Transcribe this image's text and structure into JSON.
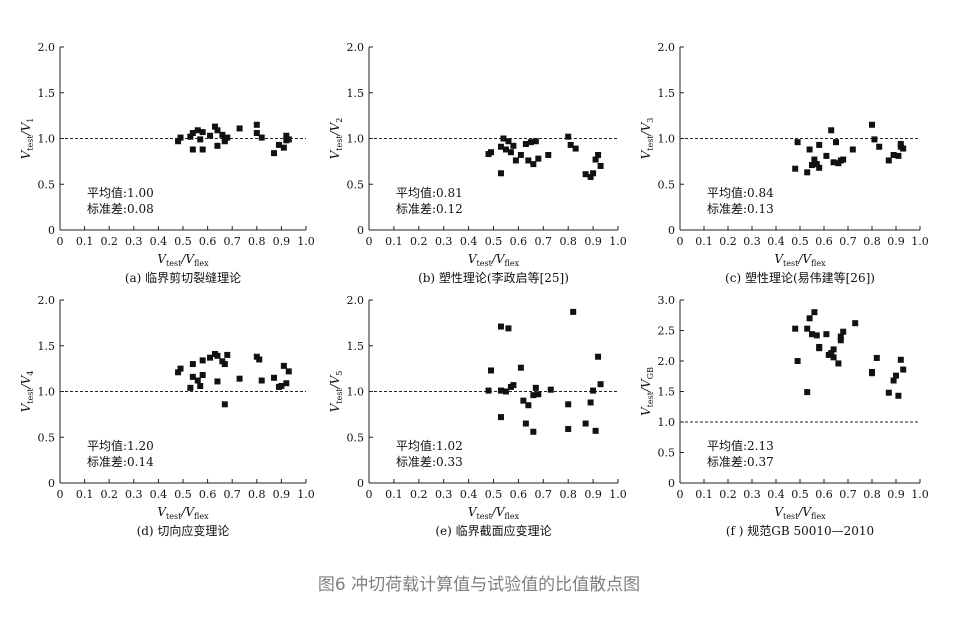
{
  "figure_caption": "图6 冲切荷载计算值与试验值的比值散点图",
  "chart_data": [
    {
      "type": "scatter",
      "caption": "(a) 临界剪切裂缝理论",
      "xlabel": {
        "main": "V",
        "sub": "test",
        "mid": "/V",
        "sub2": "flex"
      },
      "ylabel": {
        "main": "V",
        "sub": "test",
        "mid": "/V",
        "sub2": "1"
      },
      "xlim": [
        0,
        1.0
      ],
      "ylim": [
        0,
        2.0
      ],
      "xticks": [
        "0",
        "0.1",
        "0.2",
        "0.3",
        "0.4",
        "0.5",
        "0.6",
        "0.7",
        "0.8",
        "0.9",
        "1.0"
      ],
      "yticks": [
        "0",
        "0.5",
        "1.0",
        "1.5",
        "2.0"
      ],
      "ref_line": 1.0,
      "ref_style": "dashed",
      "stats": [
        "平均值:1.00",
        "标准差:0.08"
      ],
      "points": [
        [
          0.48,
          0.97
        ],
        [
          0.49,
          1.01
        ],
        [
          0.53,
          1.02
        ],
        [
          0.54,
          1.06
        ],
        [
          0.54,
          0.88
        ],
        [
          0.56,
          1.09
        ],
        [
          0.57,
          0.99
        ],
        [
          0.58,
          1.07
        ],
        [
          0.58,
          0.88
        ],
        [
          0.61,
          1.03
        ],
        [
          0.63,
          1.13
        ],
        [
          0.64,
          0.92
        ],
        [
          0.64,
          1.09
        ],
        [
          0.66,
          1.04
        ],
        [
          0.67,
          0.98
        ],
        [
          0.67,
          0.97
        ],
        [
          0.68,
          1.01
        ],
        [
          0.73,
          1.11
        ],
        [
          0.8,
          1.15
        ],
        [
          0.8,
          1.06
        ],
        [
          0.82,
          1.01
        ],
        [
          0.87,
          0.84
        ],
        [
          0.89,
          0.93
        ],
        [
          0.91,
          0.9
        ],
        [
          0.92,
          0.98
        ],
        [
          0.92,
          1.03
        ],
        [
          0.93,
          0.99
        ]
      ]
    },
    {
      "type": "scatter",
      "caption": "(b) 塑性理论(李政启等[25])",
      "xlabel": {
        "main": "V",
        "sub": "test",
        "mid": "/V",
        "sub2": "flex"
      },
      "ylabel": {
        "main": "V",
        "sub": "test",
        "mid": "/V",
        "sub2": "2"
      },
      "xlim": [
        0,
        1.0
      ],
      "ylim": [
        0,
        2.0
      ],
      "xticks": [
        "0",
        "0.1",
        "0.2",
        "0.3",
        "0.4",
        "0.5",
        "0.6",
        "0.7",
        "0.8",
        "0.9",
        "1.0"
      ],
      "yticks": [
        "0",
        "0.5",
        "1.0",
        "1.5",
        "2.0"
      ],
      "ref_line": 1.0,
      "ref_style": "dashed",
      "stats": [
        "平均值:0.81",
        "标准差:0.12"
      ],
      "points": [
        [
          0.48,
          0.83
        ],
        [
          0.49,
          0.85
        ],
        [
          0.53,
          0.62
        ],
        [
          0.53,
          0.91
        ],
        [
          0.54,
          1.0
        ],
        [
          0.55,
          0.88
        ],
        [
          0.56,
          0.97
        ],
        [
          0.57,
          0.85
        ],
        [
          0.58,
          0.92
        ],
        [
          0.59,
          0.76
        ],
        [
          0.61,
          0.82
        ],
        [
          0.63,
          0.94
        ],
        [
          0.64,
          0.76
        ],
        [
          0.65,
          0.96
        ],
        [
          0.66,
          0.72
        ],
        [
          0.67,
          0.97
        ],
        [
          0.68,
          0.78
        ],
        [
          0.72,
          0.82
        ],
        [
          0.8,
          1.02
        ],
        [
          0.81,
          0.93
        ],
        [
          0.83,
          0.89
        ],
        [
          0.87,
          0.61
        ],
        [
          0.89,
          0.58
        ],
        [
          0.9,
          0.62
        ],
        [
          0.91,
          0.77
        ],
        [
          0.92,
          0.82
        ],
        [
          0.93,
          0.7
        ]
      ]
    },
    {
      "type": "scatter",
      "caption": "(c) 塑性理论(易伟建等[26])",
      "xlabel": {
        "main": "V",
        "sub": "test",
        "mid": "/V",
        "sub2": "flex"
      },
      "ylabel": {
        "main": "V",
        "sub": "test",
        "mid": "/V",
        "sub2": "3"
      },
      "xlim": [
        0,
        1.0
      ],
      "ylim": [
        0,
        2.0
      ],
      "xticks": [
        "0",
        "0.1",
        "0.2",
        "0.3",
        "0.4",
        "0.5",
        "0.6",
        "0.7",
        "0.8",
        "0.9",
        "1.0"
      ],
      "yticks": [
        "0",
        "0.5",
        "1.0",
        "1.5",
        "2.0"
      ],
      "ref_line": 1.0,
      "ref_style": "dashed",
      "stats": [
        "平均值:0.84",
        "标准差:0.13"
      ],
      "points": [
        [
          0.48,
          0.67
        ],
        [
          0.49,
          0.96
        ],
        [
          0.53,
          0.63
        ],
        [
          0.54,
          0.88
        ],
        [
          0.55,
          0.71
        ],
        [
          0.56,
          0.77
        ],
        [
          0.57,
          0.72
        ],
        [
          0.58,
          0.93
        ],
        [
          0.58,
          0.68
        ],
        [
          0.61,
          0.81
        ],
        [
          0.63,
          1.09
        ],
        [
          0.64,
          0.74
        ],
        [
          0.65,
          0.96
        ],
        [
          0.66,
          0.73
        ],
        [
          0.67,
          0.76
        ],
        [
          0.68,
          0.77
        ],
        [
          0.72,
          0.88
        ],
        [
          0.8,
          1.15
        ],
        [
          0.81,
          0.99
        ],
        [
          0.83,
          0.91
        ],
        [
          0.87,
          0.76
        ],
        [
          0.89,
          0.82
        ],
        [
          0.91,
          0.81
        ],
        [
          0.92,
          0.94
        ],
        [
          0.92,
          0.91
        ],
        [
          0.93,
          0.89
        ]
      ]
    },
    {
      "type": "scatter",
      "caption": "(d) 切向应变理论",
      "xlabel": {
        "main": "V",
        "sub": "test",
        "mid": "/V",
        "sub2": "flex"
      },
      "ylabel": {
        "main": "V",
        "sub": "test",
        "mid": "/V",
        "sub2": "4"
      },
      "xlim": [
        0,
        1.0
      ],
      "ylim": [
        0,
        2.0
      ],
      "xticks": [
        "0",
        "0.1",
        "0.2",
        "0.3",
        "0.4",
        "0.5",
        "0.6",
        "0.7",
        "0.8",
        "0.9",
        "1.0"
      ],
      "yticks": [
        "0",
        "0.5",
        "1.0",
        "1.5",
        "2.0"
      ],
      "ref_line": 1.0,
      "ref_style": "dashed",
      "stats": [
        "平均值:1.20",
        "标准差:0.14"
      ],
      "points": [
        [
          0.48,
          1.21
        ],
        [
          0.49,
          1.25
        ],
        [
          0.53,
          1.04
        ],
        [
          0.54,
          1.3
        ],
        [
          0.54,
          1.16
        ],
        [
          0.56,
          1.12
        ],
        [
          0.57,
          1.06
        ],
        [
          0.58,
          1.18
        ],
        [
          0.58,
          1.34
        ],
        [
          0.61,
          1.37
        ],
        [
          0.63,
          1.41
        ],
        [
          0.64,
          1.11
        ],
        [
          0.64,
          1.39
        ],
        [
          0.66,
          1.33
        ],
        [
          0.67,
          0.86
        ],
        [
          0.67,
          1.3
        ],
        [
          0.68,
          1.4
        ],
        [
          0.73,
          1.14
        ],
        [
          0.8,
          1.38
        ],
        [
          0.81,
          1.35
        ],
        [
          0.82,
          1.12
        ],
        [
          0.87,
          1.15
        ],
        [
          0.89,
          1.05
        ],
        [
          0.9,
          1.06
        ],
        [
          0.91,
          1.28
        ],
        [
          0.92,
          1.09
        ],
        [
          0.93,
          1.22
        ]
      ]
    },
    {
      "type": "scatter",
      "caption": "(e) 临界截面应变理论",
      "xlabel": {
        "main": "V",
        "sub": "test",
        "mid": "/V",
        "sub2": "flex"
      },
      "ylabel": {
        "main": "V",
        "sub": "test",
        "mid": "/V",
        "sub2": "5"
      },
      "xlim": [
        0,
        1.0
      ],
      "ylim": [
        0,
        2.0
      ],
      "xticks": [
        "0",
        "0.1",
        "0.2",
        "0.3",
        "0.4",
        "0.5",
        "0.6",
        "0.7",
        "0.8",
        "0.9",
        "1.0"
      ],
      "yticks": [
        "0",
        "0.5",
        "1.0",
        "1.5",
        "2.0"
      ],
      "ref_line": 1.0,
      "ref_style": "dashed",
      "stats": [
        "平均值:1.02",
        "标准差:0.33"
      ],
      "points": [
        [
          0.48,
          1.01
        ],
        [
          0.49,
          1.23
        ],
        [
          0.53,
          1.01
        ],
        [
          0.53,
          1.71
        ],
        [
          0.53,
          0.72
        ],
        [
          0.55,
          1.0
        ],
        [
          0.56,
          1.69
        ],
        [
          0.57,
          1.05
        ],
        [
          0.58,
          1.07
        ],
        [
          0.61,
          1.26
        ],
        [
          0.62,
          0.9
        ],
        [
          0.63,
          0.65
        ],
        [
          0.64,
          0.85
        ],
        [
          0.66,
          0.56
        ],
        [
          0.66,
          0.96
        ],
        [
          0.67,
          1.04
        ],
        [
          0.68,
          0.97
        ],
        [
          0.73,
          1.02
        ],
        [
          0.8,
          0.86
        ],
        [
          0.8,
          0.59
        ],
        [
          0.82,
          1.87
        ],
        [
          0.87,
          0.65
        ],
        [
          0.89,
          0.88
        ],
        [
          0.9,
          1.01
        ],
        [
          0.91,
          0.57
        ],
        [
          0.92,
          1.38
        ],
        [
          0.93,
          1.08
        ]
      ]
    },
    {
      "type": "scatter",
      "caption": "(f ) 规范GB 50010—2010",
      "xlabel": {
        "main": "V",
        "sub": "test",
        "mid": "/V",
        "sub2": "flex"
      },
      "ylabel": {
        "main": "V",
        "sub": "test",
        "mid": "/V",
        "sub2": "GB"
      },
      "xlim": [
        0,
        1.0
      ],
      "ylim": [
        0,
        3.0
      ],
      "xticks": [
        "0",
        "0.1",
        "0.2",
        "0.3",
        "0.4",
        "0.5",
        "0.6",
        "0.7",
        "0.8",
        "0.9",
        "1.0"
      ],
      "yticks": [
        "0",
        "0.5",
        "1.0",
        "1.5",
        "2.0",
        "2.5",
        "3.0"
      ],
      "ref_line": 1.0,
      "ref_style": "dashed",
      "stats": [
        "平均值:2.13",
        "标准差:0.37"
      ],
      "points": [
        [
          0.48,
          2.53
        ],
        [
          0.49,
          2.0
        ],
        [
          0.53,
          1.49
        ],
        [
          0.53,
          2.53
        ],
        [
          0.54,
          2.7
        ],
        [
          0.55,
          2.44
        ],
        [
          0.56,
          2.8
        ],
        [
          0.57,
          2.42
        ],
        [
          0.58,
          2.23
        ],
        [
          0.58,
          2.21
        ],
        [
          0.61,
          2.44
        ],
        [
          0.62,
          2.1
        ],
        [
          0.63,
          2.13
        ],
        [
          0.64,
          2.06
        ],
        [
          0.64,
          2.19
        ],
        [
          0.66,
          1.96
        ],
        [
          0.67,
          2.4
        ],
        [
          0.67,
          2.34
        ],
        [
          0.68,
          2.48
        ],
        [
          0.73,
          2.62
        ],
        [
          0.8,
          1.82
        ],
        [
          0.8,
          1.8
        ],
        [
          0.82,
          2.05
        ],
        [
          0.87,
          1.48
        ],
        [
          0.89,
          1.68
        ],
        [
          0.9,
          1.76
        ],
        [
          0.91,
          1.43
        ],
        [
          0.92,
          2.02
        ],
        [
          0.93,
          1.86
        ]
      ]
    }
  ]
}
